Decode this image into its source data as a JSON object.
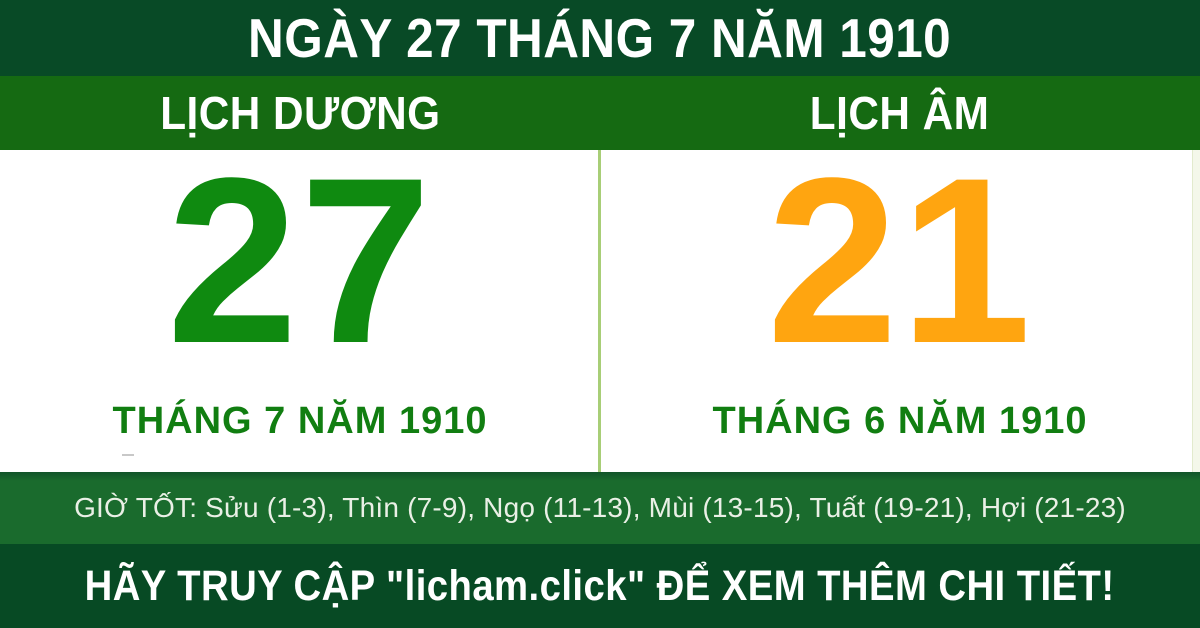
{
  "banner": {
    "date_title": "NGÀY 27 THÁNG 7 NĂM 1910"
  },
  "colors": {
    "header_bg": "#084a26",
    "subheader_bg": "#156a12",
    "solar_day": "#0f8a10",
    "lunar_day": "#ffa510",
    "month_text": "#117e11",
    "divider": "#a8ce77",
    "hours_bg_top": "#11542a",
    "hours_bg": "#1a6b2d",
    "footer_bg": "#074a24",
    "header_text": "#ffffff",
    "body_bg": "#ffffff"
  },
  "columns": {
    "solar": {
      "label": "LỊCH DƯƠNG",
      "day": "27",
      "month_year": "THÁNG 7 NĂM 1910"
    },
    "lunar": {
      "label": "LỊCH ÂM",
      "day": "21",
      "month_year": "THÁNG 6 NĂM 1910"
    }
  },
  "good_hours": {
    "label": "GIỜ TỐT:",
    "full_text": "GIỜ TỐT: Sửu (1-3), Thìn (7-9), Ngọ (11-13), Mùi (13-15), Tuất (19-21), Hợi (21-23)",
    "hours": [
      {
        "name": "Sửu",
        "range": "1-3"
      },
      {
        "name": "Thìn",
        "range": "7-9"
      },
      {
        "name": "Ngọ",
        "range": "11-13"
      },
      {
        "name": "Mùi",
        "range": "13-15"
      },
      {
        "name": "Tuất",
        "range": "19-21"
      },
      {
        "name": "Hợi",
        "range": "21-23"
      }
    ]
  },
  "footer": {
    "text": "HÃY TRUY CẬP \"licham.click\" ĐỂ XEM THÊM CHI TIẾT!",
    "site": "licham.click"
  }
}
